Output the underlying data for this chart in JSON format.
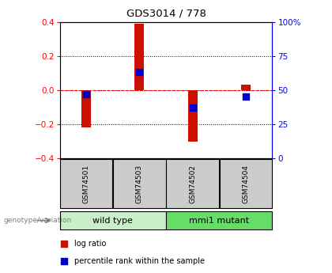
{
  "title": "GDS3014 / 778",
  "samples": [
    "GSM74501",
    "GSM74503",
    "GSM74502",
    "GSM74504"
  ],
  "log_ratios": [
    -0.22,
    0.39,
    -0.3,
    0.03
  ],
  "percentile_ranks": [
    47,
    63,
    37,
    45
  ],
  "ylim_left": [
    -0.4,
    0.4
  ],
  "ylim_right": [
    0,
    100
  ],
  "yticks_left": [
    -0.4,
    -0.2,
    0.0,
    0.2,
    0.4
  ],
  "yticks_right": [
    0,
    25,
    50,
    75,
    100
  ],
  "groups": [
    {
      "label": "wild type",
      "samples": [
        0,
        1
      ],
      "color": "#c8efc8"
    },
    {
      "label": "mmi1 mutant",
      "samples": [
        2,
        3
      ],
      "color": "#66dd66"
    }
  ],
  "group_label": "genotype/variation",
  "bar_color": "#cc1100",
  "dot_color": "#0000cc",
  "bar_width": 0.18,
  "dot_size": 28,
  "bg_color": "#ffffff",
  "sample_box_color": "#cccccc",
  "legend_items": [
    {
      "label": "log ratio",
      "color": "#cc1100"
    },
    {
      "label": "percentile rank within the sample",
      "color": "#0000cc"
    }
  ]
}
